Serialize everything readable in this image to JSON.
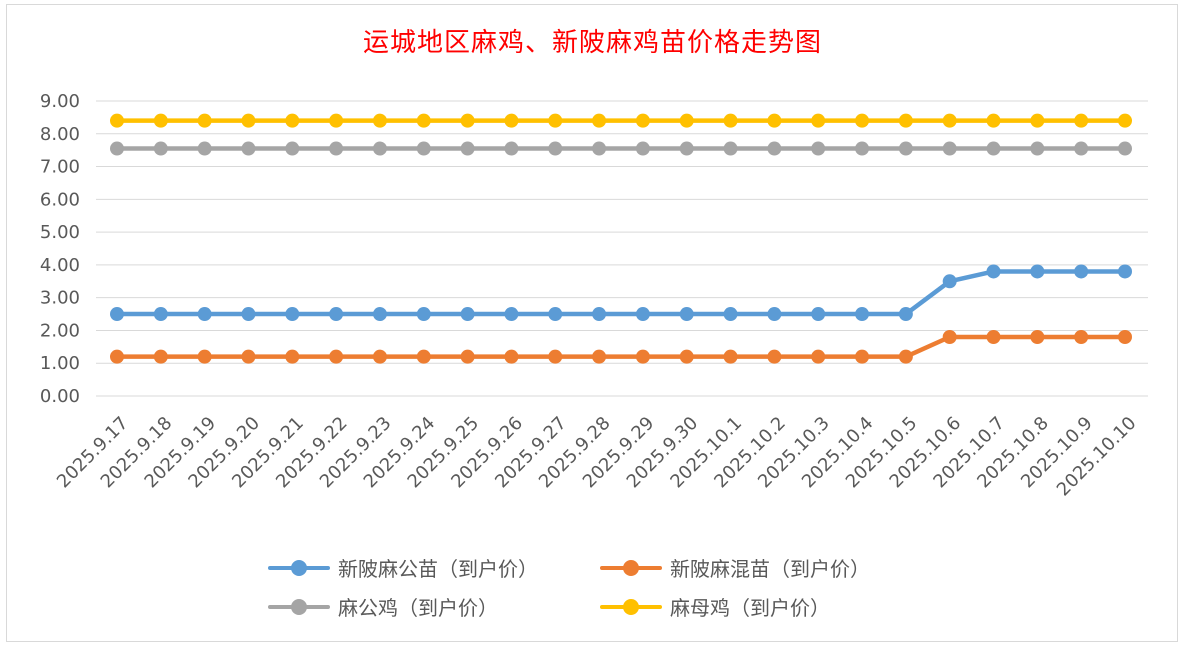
{
  "chart_data": {
    "type": "line",
    "title": "运城地区麻鸡、新陂麻鸡苗价格走势图",
    "xlabel": "",
    "ylabel": "",
    "ylim": [
      0,
      9
    ],
    "yticks": [
      "0.00",
      "1.00",
      "2.00",
      "3.00",
      "4.00",
      "5.00",
      "6.00",
      "7.00",
      "8.00",
      "9.00"
    ],
    "categories": [
      "2025.9.17",
      "2025.9.18",
      "2025.9.19",
      "2025.9.20",
      "2025.9.21",
      "2025.9.22",
      "2025.9.23",
      "2025.9.24",
      "2025.9.25",
      "2025.9.26",
      "2025.9.27",
      "2025.9.28",
      "2025.9.29",
      "2025.9.30",
      "2025.10.1",
      "2025.10.2",
      "2025.10.3",
      "2025.10.4",
      "2025.10.5",
      "2025.10.6",
      "2025.10.7",
      "2025.10.8",
      "2025.10.9",
      "2025.10.10"
    ],
    "grid": true,
    "legend_position": "bottom",
    "series": [
      {
        "name": "新陂麻公苗（到户价）",
        "color": "#5b9bd5",
        "values": [
          2.5,
          2.5,
          2.5,
          2.5,
          2.5,
          2.5,
          2.5,
          2.5,
          2.5,
          2.5,
          2.5,
          2.5,
          2.5,
          2.5,
          2.5,
          2.5,
          2.5,
          2.5,
          2.5,
          3.5,
          3.8,
          3.8,
          3.8,
          3.8
        ]
      },
      {
        "name": "新陂麻混苗（到户价）",
        "color": "#ed7d31",
        "values": [
          1.2,
          1.2,
          1.2,
          1.2,
          1.2,
          1.2,
          1.2,
          1.2,
          1.2,
          1.2,
          1.2,
          1.2,
          1.2,
          1.2,
          1.2,
          1.2,
          1.2,
          1.2,
          1.2,
          1.8,
          1.8,
          1.8,
          1.8,
          1.8
        ]
      },
      {
        "name": "麻公鸡（到户价）",
        "color": "#a5a5a5",
        "values": [
          7.55,
          7.55,
          7.55,
          7.55,
          7.55,
          7.55,
          7.55,
          7.55,
          7.55,
          7.55,
          7.55,
          7.55,
          7.55,
          7.55,
          7.55,
          7.55,
          7.55,
          7.55,
          7.55,
          7.55,
          7.55,
          7.55,
          7.55,
          7.55
        ]
      },
      {
        "name": "麻母鸡（到户价）",
        "color": "#ffc000",
        "values": [
          8.4,
          8.4,
          8.4,
          8.4,
          8.4,
          8.4,
          8.4,
          8.4,
          8.4,
          8.4,
          8.4,
          8.4,
          8.4,
          8.4,
          8.4,
          8.4,
          8.4,
          8.4,
          8.4,
          8.4,
          8.4,
          8.4,
          8.4,
          8.4
        ]
      }
    ]
  }
}
